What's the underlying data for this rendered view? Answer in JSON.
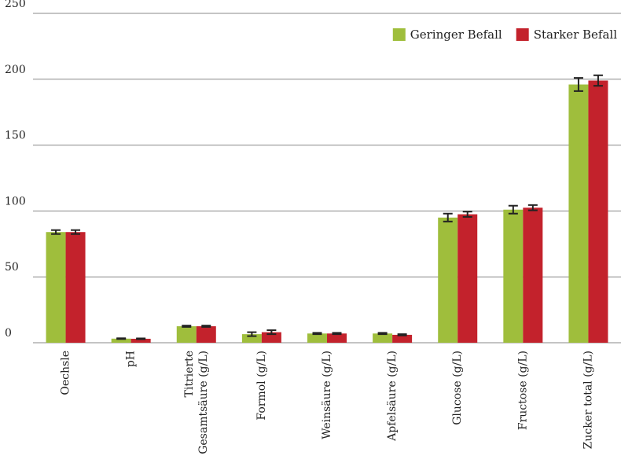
{
  "chart_data": {
    "type": "bar",
    "categories": [
      "Oechsle",
      "pH",
      "Titrierte\nGesamtsäure (g/L)",
      "Formol (g/L)",
      "Weinsäure (g/L)",
      "Apfelsäure (g/L)",
      "Glucose (g/L)",
      "Fructose (g/L)",
      "Zucker total (g/L)"
    ],
    "series": [
      {
        "name": "Geringer Befall",
        "color": "#9fbe3c",
        "values": [
          84,
          3.1,
          12.5,
          6.5,
          7,
          7,
          95,
          101,
          196
        ],
        "errors": [
          1.5,
          0.3,
          0.5,
          1.5,
          0.5,
          0.5,
          3,
          3,
          5
        ]
      },
      {
        "name": "Starker Befall",
        "color": "#c3222c",
        "values": [
          84,
          3,
          12.5,
          8,
          7,
          6,
          97.5,
          102.5,
          199
        ],
        "errors": [
          1.5,
          0.3,
          0.5,
          1.5,
          0.5,
          0.5,
          2,
          2,
          4
        ]
      }
    ],
    "ylim": [
      0,
      250
    ],
    "yticks": [
      0,
      50,
      100,
      150,
      200,
      250
    ],
    "grid": true,
    "legend": "top-right"
  }
}
